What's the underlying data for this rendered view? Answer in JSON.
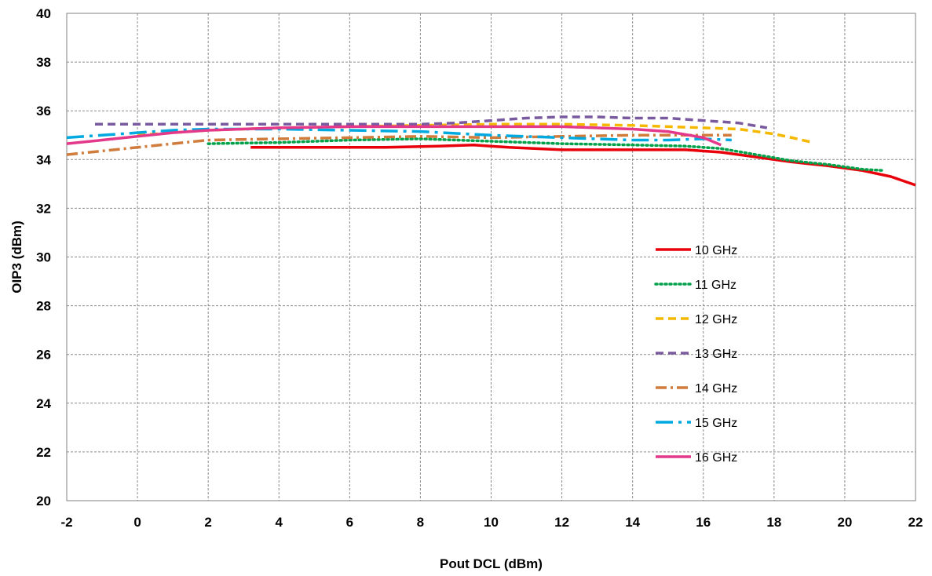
{
  "chart_data": {
    "type": "line",
    "xlabel": "Pout DCL (dBm)",
    "ylabel": "OIP3 (dBm)",
    "xlim": [
      -2,
      22
    ],
    "ylim": [
      20,
      40
    ],
    "x_ticks": [
      "-2",
      "0",
      "2",
      "4",
      "6",
      "8",
      "10",
      "12",
      "14",
      "16",
      "18",
      "20",
      "22"
    ],
    "y_ticks": [
      "20",
      "22",
      "24",
      "26",
      "28",
      "30",
      "32",
      "34",
      "36",
      "38",
      "40"
    ],
    "grid": true,
    "legend_position": "right-middle",
    "series": [
      {
        "name": "10 GHz",
        "color": "#e8000b",
        "style": "solid",
        "points": [
          [
            3.2,
            34.5
          ],
          [
            5,
            34.5
          ],
          [
            7,
            34.5
          ],
          [
            8.5,
            34.55
          ],
          [
            9.5,
            34.6
          ],
          [
            10.5,
            34.5
          ],
          [
            12,
            34.4
          ],
          [
            14,
            34.4
          ],
          [
            15.5,
            34.4
          ],
          [
            16.5,
            34.3
          ],
          [
            17.5,
            34.1
          ],
          [
            18.5,
            33.9
          ],
          [
            19.5,
            33.75
          ],
          [
            20.5,
            33.55
          ],
          [
            21.3,
            33.3
          ],
          [
            22,
            32.95
          ]
        ]
      },
      {
        "name": "11 GHz",
        "color": "#00a14b",
        "style": "dotted",
        "points": [
          [
            2,
            34.65
          ],
          [
            4,
            34.7
          ],
          [
            6,
            34.8
          ],
          [
            8,
            34.85
          ],
          [
            10,
            34.75
          ],
          [
            12,
            34.65
          ],
          [
            14,
            34.6
          ],
          [
            15.5,
            34.55
          ],
          [
            16.5,
            34.45
          ],
          [
            17.5,
            34.2
          ],
          [
            18.5,
            33.95
          ],
          [
            19.5,
            33.8
          ],
          [
            20.5,
            33.6
          ],
          [
            21.1,
            33.55
          ]
        ]
      },
      {
        "name": "12 GHz",
        "color": "#f5b800",
        "style": "dashed",
        "points": [
          [
            0,
            35.0
          ],
          [
            1,
            35.1
          ],
          [
            2,
            35.2
          ],
          [
            4,
            35.3
          ],
          [
            6,
            35.35
          ],
          [
            8,
            35.4
          ],
          [
            10,
            35.45
          ],
          [
            12,
            35.45
          ],
          [
            14,
            35.4
          ],
          [
            16,
            35.3
          ],
          [
            17,
            35.25
          ],
          [
            18,
            35.05
          ],
          [
            18.5,
            34.9
          ],
          [
            19.1,
            34.7
          ]
        ]
      },
      {
        "name": "13 GHz",
        "color": "#7a5a9e",
        "style": "dashed",
        "points": [
          [
            -1.2,
            35.45
          ],
          [
            0,
            35.45
          ],
          [
            2,
            35.45
          ],
          [
            4,
            35.45
          ],
          [
            6,
            35.45
          ],
          [
            8,
            35.45
          ],
          [
            9,
            35.5
          ],
          [
            10,
            35.6
          ],
          [
            11,
            35.7
          ],
          [
            12,
            35.75
          ],
          [
            13,
            35.75
          ],
          [
            14,
            35.7
          ],
          [
            15,
            35.7
          ],
          [
            16,
            35.6
          ],
          [
            17,
            35.5
          ],
          [
            17.8,
            35.3
          ]
        ]
      },
      {
        "name": "14 GHz",
        "color": "#d07c3c",
        "style": "dashdot",
        "points": [
          [
            -2,
            34.2
          ],
          [
            -1,
            34.35
          ],
          [
            0,
            34.5
          ],
          [
            1,
            34.65
          ],
          [
            2,
            34.8
          ],
          [
            4,
            34.85
          ],
          [
            6,
            34.9
          ],
          [
            8,
            34.95
          ],
          [
            10,
            34.9
          ],
          [
            12,
            34.95
          ],
          [
            14,
            35.0
          ],
          [
            16,
            35.0
          ],
          [
            16.8,
            35.0
          ]
        ]
      },
      {
        "name": "15 GHz",
        "color": "#00a9e0",
        "style": "longdash",
        "points": [
          [
            -2,
            34.9
          ],
          [
            -1,
            35.0
          ],
          [
            0,
            35.1
          ],
          [
            1,
            35.2
          ],
          [
            2,
            35.25
          ],
          [
            4,
            35.25
          ],
          [
            6,
            35.2
          ],
          [
            8,
            35.15
          ],
          [
            10,
            35.0
          ],
          [
            12,
            34.9
          ],
          [
            14,
            34.8
          ],
          [
            15,
            34.8
          ],
          [
            16,
            34.85
          ],
          [
            16.8,
            34.8
          ]
        ]
      },
      {
        "name": "16 GHz",
        "color": "#e4388a",
        "style": "solid",
        "points": [
          [
            -2,
            34.65
          ],
          [
            -1,
            34.8
          ],
          [
            0,
            34.95
          ],
          [
            1,
            35.1
          ],
          [
            2,
            35.2
          ],
          [
            4,
            35.3
          ],
          [
            6,
            35.35
          ],
          [
            8,
            35.35
          ],
          [
            10,
            35.35
          ],
          [
            12,
            35.35
          ],
          [
            14,
            35.25
          ],
          [
            15,
            35.15
          ],
          [
            16,
            34.9
          ],
          [
            16.5,
            34.6
          ]
        ]
      }
    ]
  }
}
